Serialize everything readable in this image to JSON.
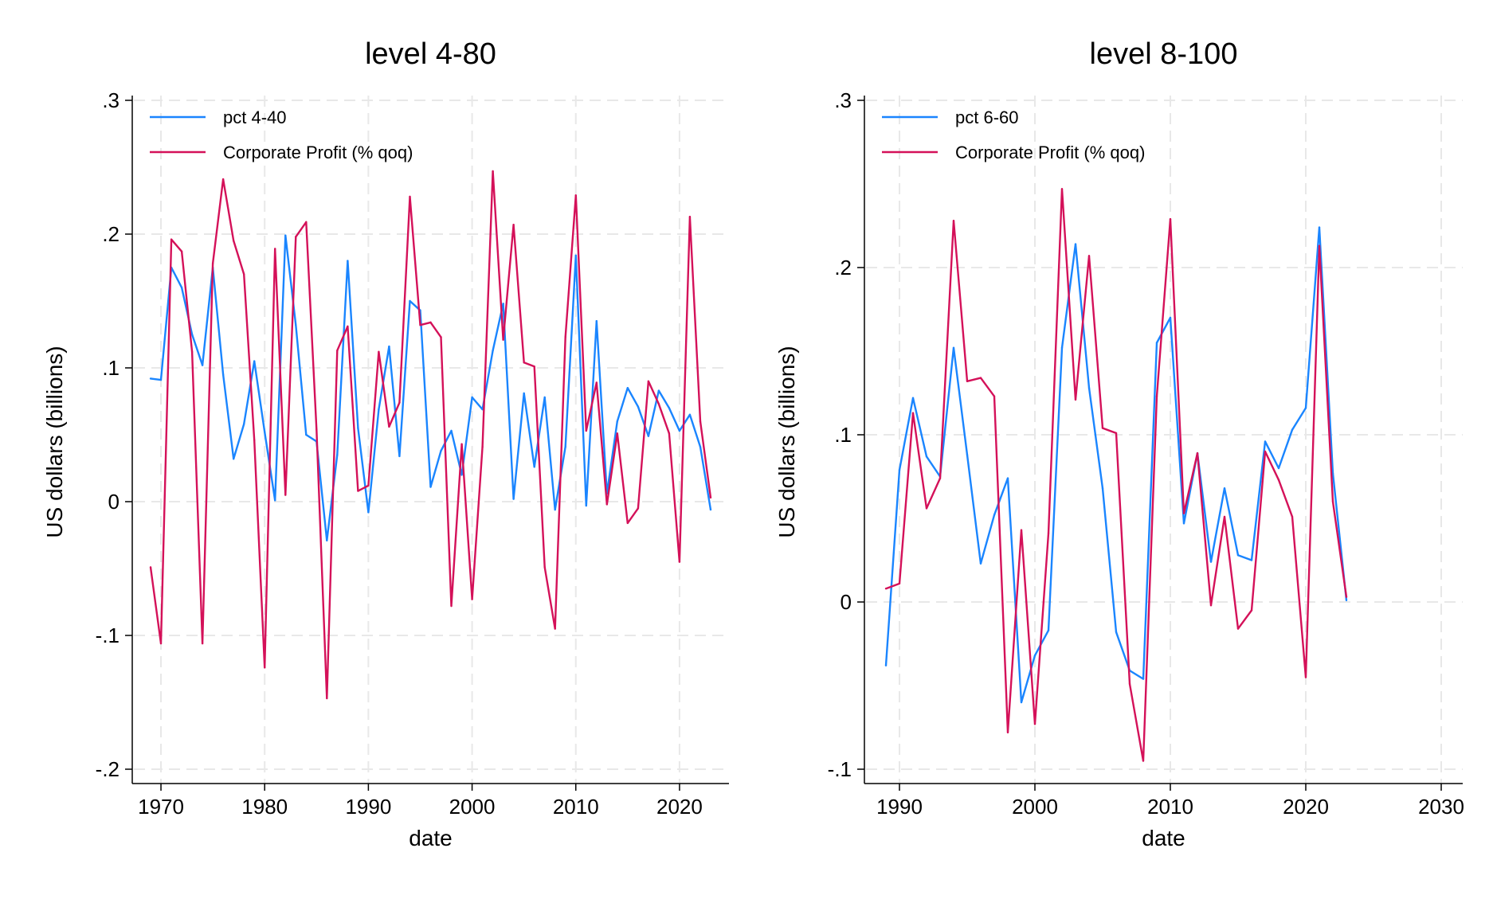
{
  "colors": {
    "blue": "#1a85ff",
    "red": "#d41159",
    "grid": "#e8e8e8",
    "axis": "#000000"
  },
  "chart_data": [
    {
      "type": "line",
      "title": "level 4-80",
      "xlabel": "date",
      "ylabel": "US dollars (billions)",
      "xlim": [
        1968,
        2024
      ],
      "ylim": [
        -0.2,
        0.3
      ],
      "xticks": [
        1970,
        1980,
        1990,
        2000,
        2010,
        2020
      ],
      "xtick_labels": [
        "1970",
        "1980",
        "1990",
        "2000",
        "2010",
        "2020"
      ],
      "yticks": [
        -0.2,
        -0.1,
        0,
        0.1,
        0.2,
        0.3
      ],
      "ytick_labels": [
        "-.2",
        "-.1",
        "0",
        ".1",
        ".2",
        ".3"
      ],
      "grid": true,
      "legend_position": "top-left",
      "series": [
        {
          "name": "pct 4-40",
          "color": "#1a85ff",
          "x": [
            1969,
            1970,
            1971,
            1972,
            1973,
            1974,
            1975,
            1976,
            1977,
            1978,
            1979,
            1980,
            1981,
            1982,
            1983,
            1984,
            1985,
            1986,
            1987,
            1988,
            1989,
            1990,
            1991,
            1992,
            1993,
            1994,
            1995,
            1996,
            1997,
            1998,
            1999,
            2000,
            2001,
            2002,
            2003,
            2004,
            2005,
            2006,
            2007,
            2008,
            2009,
            2010,
            2011,
            2012,
            2013,
            2014,
            2015,
            2016,
            2017,
            2018,
            2019,
            2020,
            2021,
            2022,
            2023
          ],
          "values": [
            0.092,
            0.091,
            0.175,
            0.16,
            0.125,
            0.102,
            0.175,
            0.095,
            0.032,
            0.058,
            0.105,
            0.052,
            0.001,
            0.199,
            0.132,
            0.05,
            0.045,
            -0.029,
            0.035,
            0.18,
            0.055,
            -0.008,
            0.069,
            0.116,
            0.034,
            0.15,
            0.143,
            0.011,
            0.038,
            0.053,
            0.02,
            0.078,
            0.069,
            0.113,
            0.148,
            0.002,
            0.081,
            0.026,
            0.078,
            -0.006,
            0.041,
            0.184,
            -0.003,
            0.135,
            0.006,
            0.06,
            0.085,
            0.071,
            0.049,
            0.083,
            0.07,
            0.053,
            0.065,
            0.041,
            -0.006
          ]
        },
        {
          "name": "Corporate Profit (% qoq)",
          "color": "#d41159",
          "x": [
            1969,
            1970,
            1971,
            1972,
            1973,
            1974,
            1975,
            1976,
            1977,
            1978,
            1979,
            1980,
            1981,
            1982,
            1983,
            1984,
            1985,
            1986,
            1987,
            1988,
            1989,
            1990,
            1991,
            1992,
            1993,
            1994,
            1995,
            1996,
            1997,
            1998,
            1999,
            2000,
            2001,
            2002,
            2003,
            2004,
            2005,
            2006,
            2007,
            2008,
            2009,
            2010,
            2011,
            2012,
            2013,
            2014,
            2015,
            2016,
            2017,
            2018,
            2019,
            2020,
            2021,
            2022,
            2023
          ],
          "values": [
            -0.049,
            -0.106,
            0.196,
            0.187,
            0.112,
            -0.106,
            0.178,
            0.241,
            0.195,
            0.17,
            0.046,
            -0.124,
            0.189,
            0.005,
            0.198,
            0.209,
            0.054,
            -0.147,
            0.113,
            0.131,
            0.008,
            0.012,
            0.112,
            0.056,
            0.074,
            0.228,
            0.132,
            0.134,
            0.123,
            -0.078,
            0.043,
            -0.073,
            0.041,
            0.247,
            0.121,
            0.207,
            0.104,
            0.101,
            -0.049,
            -0.095,
            0.123,
            0.229,
            0.053,
            0.089,
            -0.002,
            0.051,
            -0.016,
            -0.005,
            0.09,
            0.073,
            0.051,
            -0.045,
            0.213,
            0.06,
            0.003
          ]
        }
      ]
    },
    {
      "type": "line",
      "title": "level 8-100",
      "xlabel": "date",
      "ylabel": "US dollars (billions)",
      "xlim": [
        1988,
        2031
      ],
      "ylim": [
        -0.1,
        0.3
      ],
      "xticks": [
        1990,
        2000,
        2010,
        2020,
        2030
      ],
      "xtick_labels": [
        "1990",
        "2000",
        "2010",
        "2020",
        "2030"
      ],
      "yticks": [
        -0.1,
        0,
        0.1,
        0.2,
        0.3
      ],
      "ytick_labels": [
        "-.1",
        "0",
        ".1",
        ".2",
        ".3"
      ],
      "grid": true,
      "legend_position": "top-left",
      "series": [
        {
          "name": "pct 6-60",
          "color": "#1a85ff",
          "x": [
            1989,
            1990,
            1991,
            1992,
            1993,
            1994,
            1995,
            1996,
            1997,
            1998,
            1999,
            2000,
            2001,
            2002,
            2003,
            2004,
            2005,
            2006,
            2007,
            2008,
            2009,
            2010,
            2011,
            2012,
            2013,
            2014,
            2015,
            2016,
            2017,
            2018,
            2019,
            2020,
            2021,
            2022,
            2023
          ],
          "values": [
            -0.038,
            0.079,
            0.122,
            0.087,
            0.075,
            0.152,
            0.088,
            0.023,
            0.052,
            0.074,
            -0.06,
            -0.032,
            -0.017,
            0.152,
            0.214,
            0.128,
            0.068,
            -0.018,
            -0.041,
            -0.046,
            0.155,
            0.17,
            0.047,
            0.089,
            0.024,
            0.068,
            0.028,
            0.025,
            0.096,
            0.08,
            0.103,
            0.116,
            0.224,
            0.077,
            0.001
          ]
        },
        {
          "name": "Corporate Profit (% qoq)",
          "color": "#d41159",
          "x": [
            1989,
            1990,
            1991,
            1992,
            1993,
            1994,
            1995,
            1996,
            1997,
            1998,
            1999,
            2000,
            2001,
            2002,
            2003,
            2004,
            2005,
            2006,
            2007,
            2008,
            2009,
            2010,
            2011,
            2012,
            2013,
            2014,
            2015,
            2016,
            2017,
            2018,
            2019,
            2020,
            2021,
            2022,
            2023
          ],
          "values": [
            0.008,
            0.011,
            0.113,
            0.056,
            0.074,
            0.228,
            0.132,
            0.134,
            0.123,
            -0.078,
            0.043,
            -0.073,
            0.041,
            0.247,
            0.121,
            0.207,
            0.104,
            0.101,
            -0.049,
            -0.095,
            0.123,
            0.229,
            0.053,
            0.089,
            -0.002,
            0.051,
            -0.016,
            -0.005,
            0.09,
            0.073,
            0.051,
            -0.045,
            0.213,
            0.06,
            0.003
          ]
        }
      ]
    }
  ]
}
